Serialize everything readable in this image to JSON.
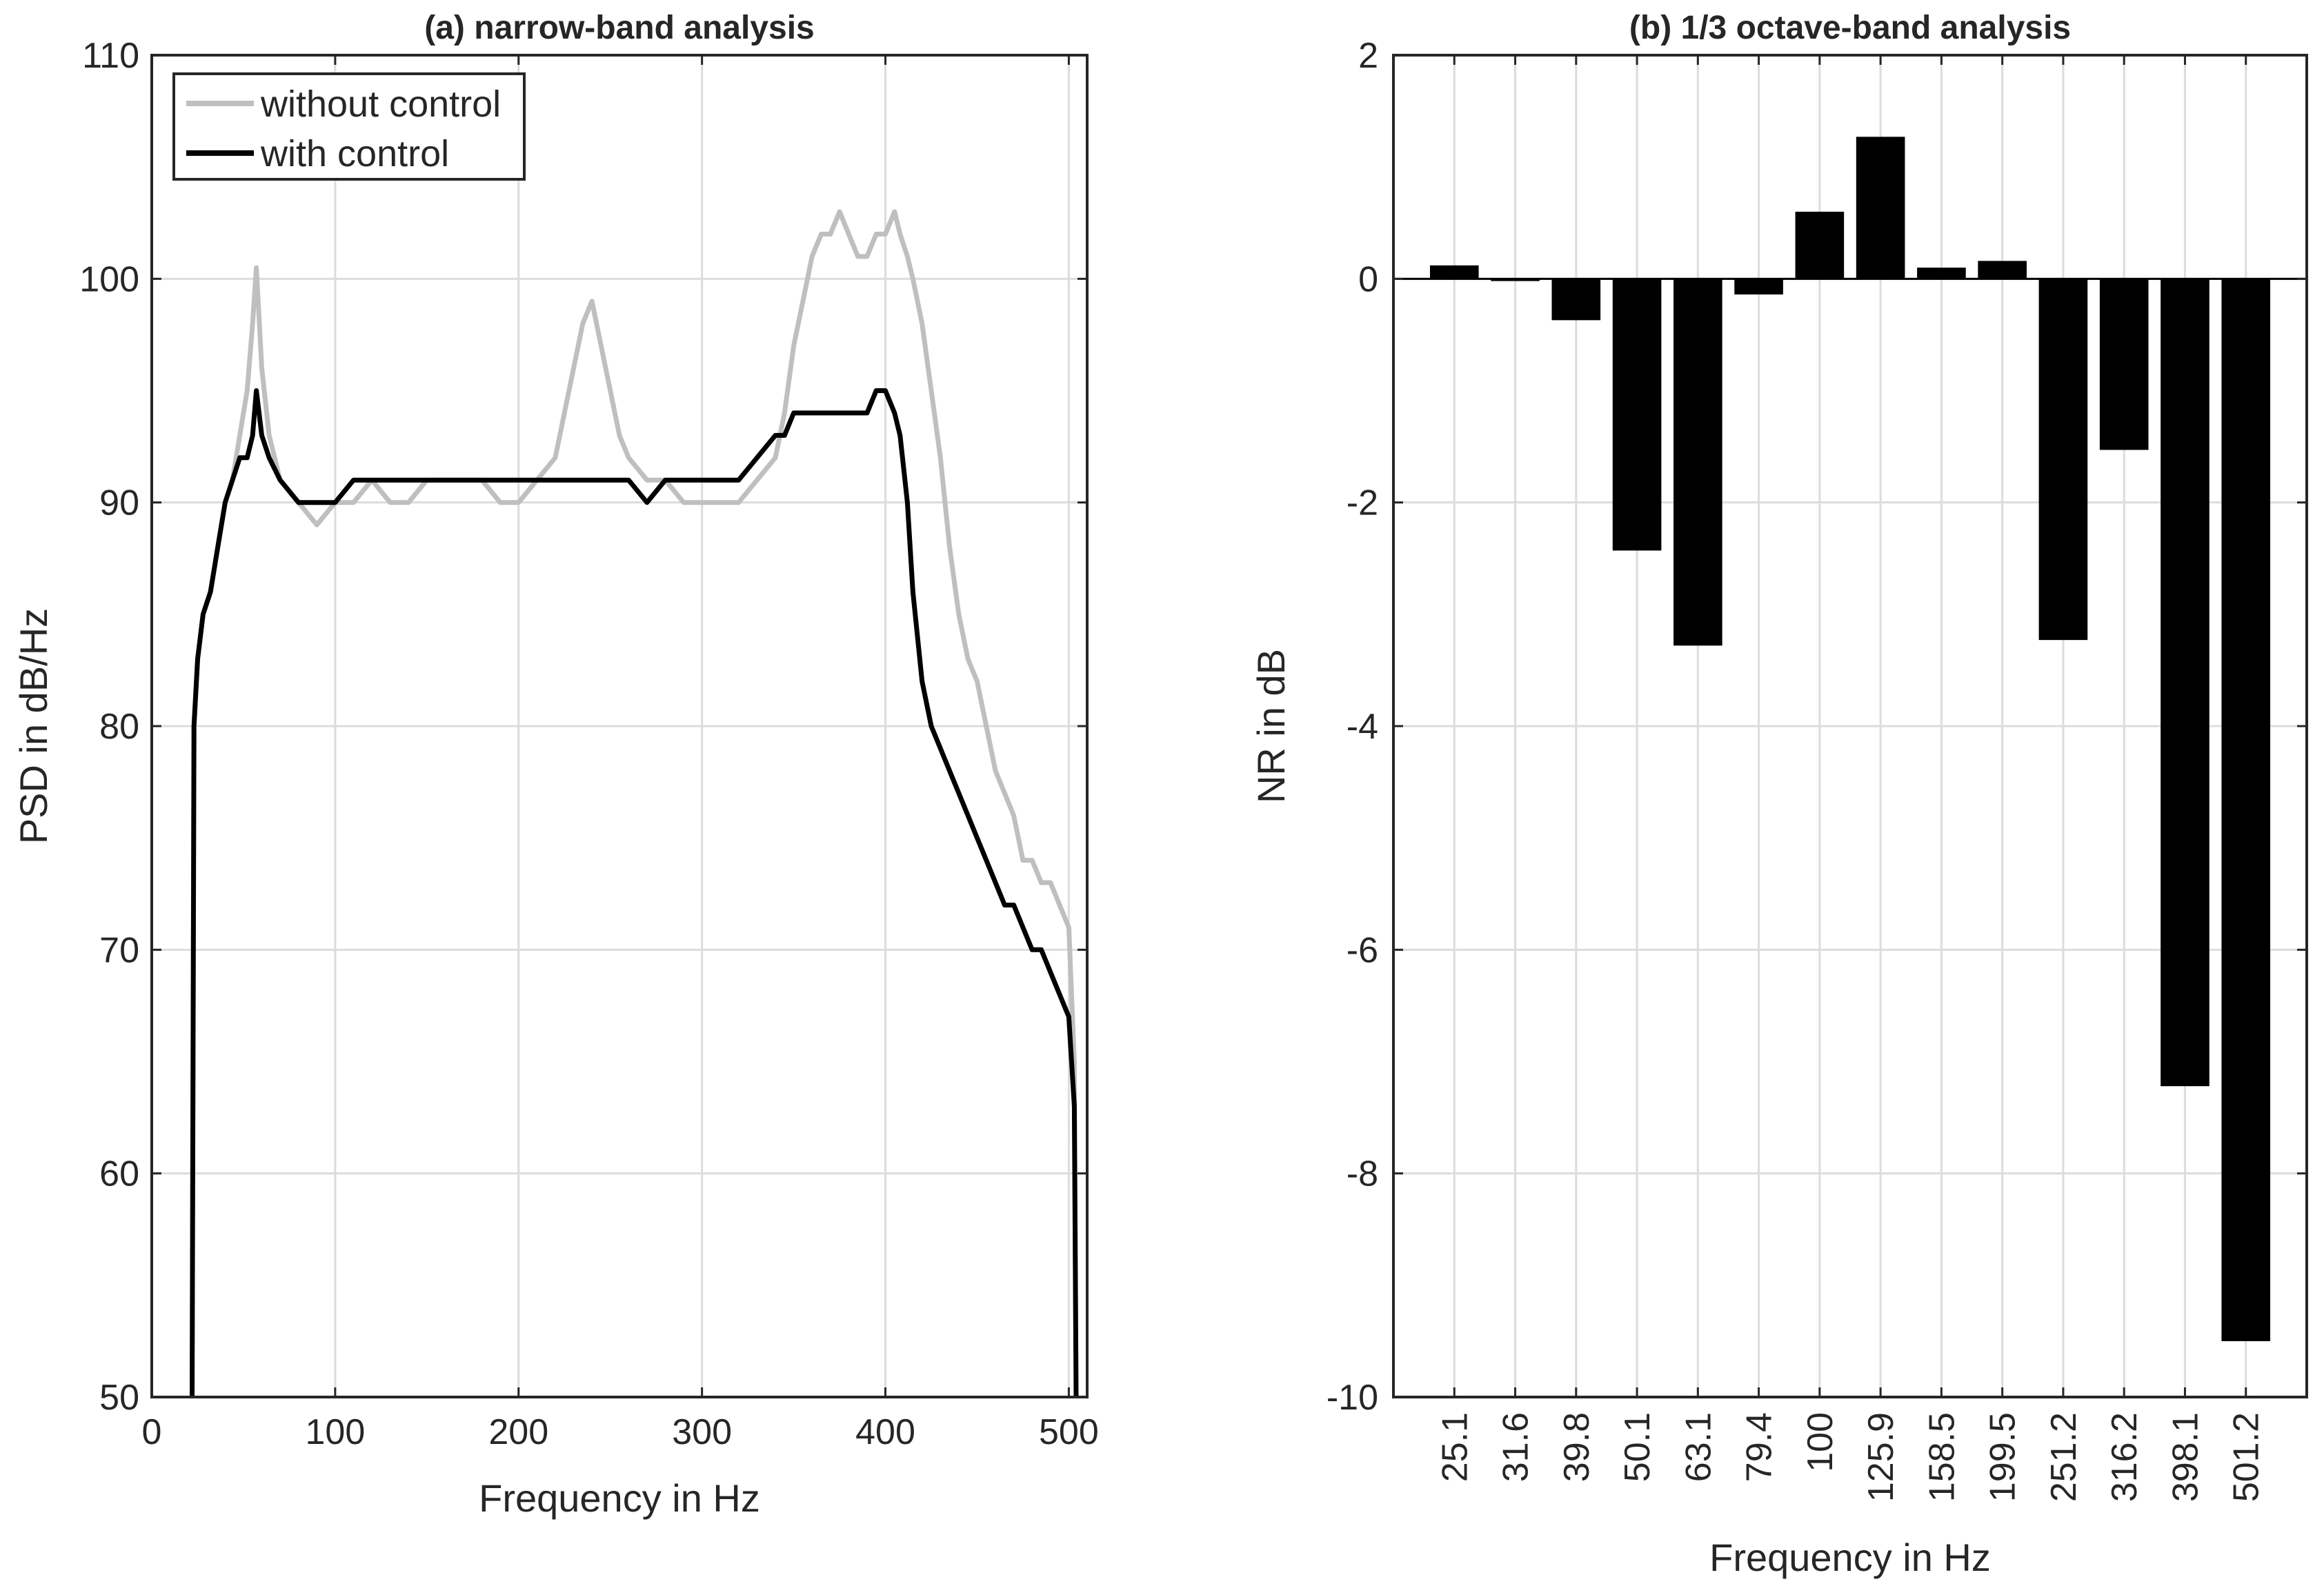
{
  "chart_data": [
    {
      "type": "line",
      "title": "(a) narrow-band analysis",
      "xlabel": "Frequency in Hz",
      "ylabel": "PSD in dB/Hz",
      "xlim": [
        0,
        510
      ],
      "ylim": [
        50,
        110
      ],
      "xticks": [
        "0",
        "100",
        "200",
        "300",
        "400",
        "500"
      ],
      "yticks": [
        "50",
        "60",
        "70",
        "80",
        "90",
        "100",
        "110"
      ],
      "grid": true,
      "legend_position": "top-left",
      "series": [
        {
          "name": "without control",
          "color": "#bfbfbf",
          "x": [
            22,
            23,
            25,
            28,
            32,
            36,
            40,
            44,
            48,
            52,
            55,
            57,
            60,
            64,
            70,
            80,
            90,
            100,
            110,
            120,
            130,
            140,
            150,
            160,
            170,
            180,
            190,
            200,
            210,
            220,
            225,
            230,
            235,
            240,
            245,
            250,
            255,
            260,
            270,
            280,
            290,
            300,
            310,
            320,
            330,
            340,
            345,
            350,
            355,
            360,
            365,
            370,
            375,
            380,
            385,
            390,
            395,
            400,
            405,
            408,
            412,
            415,
            420,
            425,
            430,
            435,
            440,
            445,
            450,
            455,
            460,
            465,
            470,
            475,
            480,
            485,
            490,
            495,
            500,
            503,
            504
          ],
          "y": [
            50,
            80,
            83,
            85,
            86,
            88,
            90,
            91,
            93,
            95,
            98,
            100.5,
            96,
            93,
            91,
            90,
            89,
            90,
            90,
            91,
            90,
            90,
            91,
            91,
            91,
            91,
            90,
            90,
            91,
            92,
            94,
            96,
            98,
            99,
            97,
            95,
            93,
            92,
            91,
            91,
            90,
            90,
            90,
            90,
            91,
            92,
            94,
            97,
            99,
            101,
            102,
            102,
            103,
            102,
            101,
            101,
            102,
            102,
            103,
            102,
            101,
            100,
            98,
            95,
            92,
            88,
            85,
            83,
            82,
            80,
            78,
            77,
            76,
            74,
            74,
            73,
            73,
            72,
            71,
            65,
            50
          ]
        },
        {
          "name": "with control",
          "color": "#000000",
          "x": [
            22,
            23,
            25,
            28,
            32,
            36,
            40,
            44,
            48,
            52,
            55,
            57,
            60,
            64,
            70,
            80,
            90,
            100,
            110,
            120,
            130,
            140,
            150,
            160,
            170,
            180,
            190,
            200,
            210,
            220,
            225,
            230,
            235,
            240,
            245,
            250,
            255,
            260,
            270,
            280,
            290,
            300,
            310,
            320,
            330,
            340,
            345,
            350,
            355,
            360,
            365,
            370,
            375,
            380,
            385,
            390,
            395,
            400,
            405,
            408,
            412,
            415,
            420,
            425,
            430,
            435,
            440,
            445,
            450,
            455,
            460,
            465,
            470,
            475,
            480,
            485,
            490,
            495,
            500,
            503,
            504
          ],
          "y": [
            50,
            80,
            83,
            85,
            86,
            88,
            90,
            91,
            92,
            92,
            93,
            95,
            93,
            92,
            91,
            90,
            90,
            90,
            91,
            91,
            91,
            91,
            91,
            91,
            91,
            91,
            91,
            91,
            91,
            91,
            91,
            91,
            91,
            91,
            91,
            91,
            91,
            91,
            90,
            91,
            91,
            91,
            91,
            91,
            92,
            93,
            93,
            94,
            94,
            94,
            94,
            94,
            94,
            94,
            94,
            94,
            95,
            95,
            94,
            93,
            90,
            86,
            82,
            80,
            79,
            78,
            77,
            76,
            75,
            74,
            73,
            72,
            72,
            71,
            70,
            70,
            69,
            68,
            67,
            63,
            50
          ]
        }
      ]
    },
    {
      "type": "bar",
      "title": "(b) 1/3 octave-band analysis",
      "xlabel": "Frequency in Hz",
      "ylabel": "NR in dB",
      "ylim": [
        -10,
        2
      ],
      "yticks": [
        "-10",
        "-8",
        "-6",
        "-4",
        "-2",
        "0",
        "2"
      ],
      "grid": true,
      "categories": [
        "25.1",
        "31.6",
        "39.8",
        "50.1",
        "63.1",
        "79.4",
        "100",
        "125.9",
        "158.5",
        "199.5",
        "251.2",
        "316.2",
        "398.1",
        "501.2"
      ],
      "values": [
        0.12,
        -0.02,
        -0.37,
        -2.43,
        -3.28,
        -0.14,
        0.6,
        1.27,
        0.1,
        0.16,
        -3.23,
        -1.53,
        -7.22,
        -9.5
      ],
      "color": "#000000"
    }
  ]
}
